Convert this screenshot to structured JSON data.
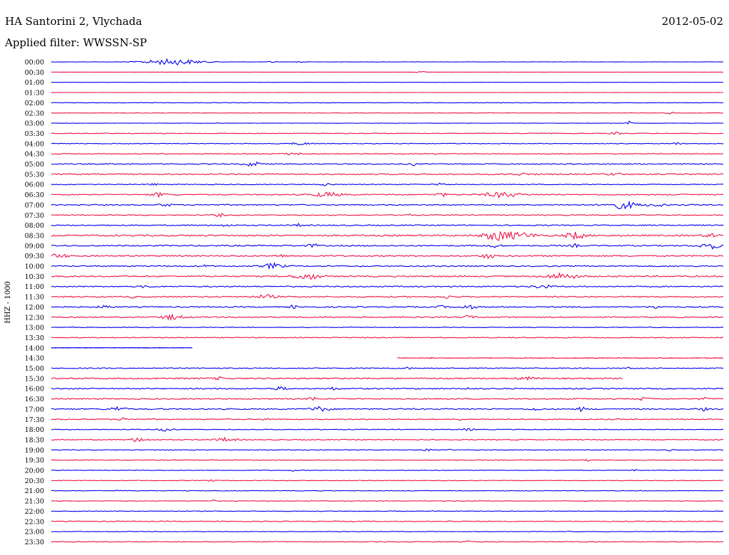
{
  "header": {
    "station": "HA Santorini 2, Vlychada",
    "date": "2012-05-02",
    "filter": "Applied filter: WWSSN-SP"
  },
  "colors": {
    "odd": "#0000ee",
    "even": "#ee1144"
  },
  "chart_data": {
    "type": "line",
    "ylabel": "HHZ - 1000",
    "hours_per_row": 0.5,
    "row_labels": [
      "00:00",
      "00:30",
      "01:00",
      "01:30",
      "02:00",
      "02:30",
      "03:00",
      "03:30",
      "04:00",
      "04:30",
      "05:00",
      "05:30",
      "06:00",
      "06:30",
      "07:00",
      "07:30",
      "08:00",
      "08:30",
      "09:00",
      "09:30",
      "10:00",
      "10:30",
      "11:00",
      "11:30",
      "12:00",
      "12:30",
      "13:00",
      "13:30",
      "14:00",
      "14:30",
      "15:00",
      "15:30",
      "16:00",
      "16:30",
      "17:00",
      "17:30",
      "18:00",
      "18:30",
      "19:00",
      "19:30",
      "20:00",
      "20:30",
      "21:00",
      "21:30",
      "22:00",
      "22:30",
      "23:00",
      "23:30"
    ],
    "rows": [
      {
        "noise": 0.3,
        "events": [
          [
            0.18,
            4,
            0.03
          ],
          [
            0.33,
            1.2,
            0.004
          ],
          [
            0.37,
            1.5,
            0.004
          ]
        ]
      },
      {
        "noise": 0.05,
        "events": [
          [
            0.55,
            1.0,
            0.006
          ]
        ]
      },
      {
        "noise": 0.15,
        "events": []
      },
      {
        "noise": 0.12,
        "events": []
      },
      {
        "noise": 0.4,
        "events": []
      },
      {
        "noise": 0.3,
        "events": [
          [
            0.92,
            1.5,
            0.005
          ]
        ]
      },
      {
        "noise": 0.3,
        "events": [
          [
            0.86,
            2.5,
            0.003
          ]
        ]
      },
      {
        "noise": 0.6,
        "events": [
          [
            0.84,
            1.5,
            0.006
          ]
        ]
      },
      {
        "noise": 0.6,
        "events": [
          [
            0.37,
            1.5,
            0.01
          ],
          [
            0.93,
            1.5,
            0.005
          ]
        ]
      },
      {
        "noise": 0.7,
        "events": [
          [
            0.36,
            1.5,
            0.008
          ]
        ]
      },
      {
        "noise": 0.9,
        "events": [
          [
            0.3,
            3,
            0.008
          ],
          [
            0.54,
            2,
            0.003
          ]
        ]
      },
      {
        "noise": 1.0,
        "events": [
          [
            0.7,
            1.3,
            0.01
          ],
          [
            0.84,
            1.3,
            0.01
          ]
        ]
      },
      {
        "noise": 0.7,
        "events": [
          [
            0.15,
            2,
            0.004
          ],
          [
            0.41,
            2,
            0.005
          ],
          [
            0.58,
            2,
            0.004
          ]
        ]
      },
      {
        "noise": 0.9,
        "events": [
          [
            0.16,
            2.5,
            0.008
          ],
          [
            0.41,
            3,
            0.015
          ],
          [
            0.58,
            2.5,
            0.006
          ],
          [
            0.67,
            3.5,
            0.018
          ],
          [
            0.94,
            2,
            0.005
          ]
        ]
      },
      {
        "noise": 0.9,
        "events": [
          [
            0.17,
            2,
            0.006
          ],
          [
            0.85,
            5,
            0.015
          ],
          [
            0.9,
            2,
            0.01
          ]
        ]
      },
      {
        "noise": 0.8,
        "events": [
          [
            0.25,
            2,
            0.006
          ],
          [
            0.53,
            1.5,
            0.005
          ]
        ]
      },
      {
        "noise": 0.9,
        "events": [
          [
            0.26,
            2,
            0.004
          ],
          [
            0.37,
            2,
            0.005
          ]
        ]
      },
      {
        "noise": 1.3,
        "events": [
          [
            0.66,
            5,
            0.012
          ],
          [
            0.69,
            4,
            0.02
          ],
          [
            0.78,
            4.5,
            0.01
          ],
          [
            0.98,
            2.5,
            0.006
          ]
        ]
      },
      {
        "noise": 1.1,
        "events": [
          [
            0.39,
            2,
            0.006
          ],
          [
            0.66,
            2,
            0.006
          ],
          [
            0.78,
            2,
            0.004
          ],
          [
            0.98,
            4,
            0.01
          ]
        ]
      },
      {
        "noise": 1.1,
        "events": [
          [
            0.01,
            2.5,
            0.01
          ],
          [
            0.34,
            2,
            0.004
          ],
          [
            0.65,
            3.5,
            0.006
          ]
        ]
      },
      {
        "noise": 1.0,
        "events": [
          [
            0.23,
            1.5,
            0.004
          ],
          [
            0.33,
            3.5,
            0.01
          ]
        ]
      },
      {
        "noise": 1.1,
        "events": [
          [
            0.38,
            4,
            0.014
          ],
          [
            0.76,
            4,
            0.016
          ]
        ]
      },
      {
        "noise": 1.0,
        "events": [
          [
            0.14,
            1.5,
            0.005
          ],
          [
            0.73,
            2,
            0.01
          ]
        ]
      },
      {
        "noise": 1.0,
        "events": [
          [
            0.12,
            2.5,
            0.003
          ],
          [
            0.32,
            2.5,
            0.01
          ],
          [
            0.59,
            2,
            0.005
          ]
        ]
      },
      {
        "noise": 1.0,
        "events": [
          [
            0.08,
            2,
            0.006
          ],
          [
            0.36,
            2,
            0.004
          ],
          [
            0.58,
            2.5,
            0.003
          ],
          [
            0.62,
            2.5,
            0.008
          ],
          [
            0.9,
            2,
            0.005
          ]
        ]
      },
      {
        "noise": 1.0,
        "events": [
          [
            0.18,
            3,
            0.012
          ],
          [
            0.62,
            2,
            0.006
          ]
        ]
      },
      {
        "noise": 0.6,
        "events": []
      },
      {
        "noise": 0.7,
        "events": []
      },
      {
        "noise": 0.4,
        "events": [],
        "end": 0.21
      },
      {
        "noise": 0.7,
        "events": [],
        "start": 0.515
      },
      {
        "noise": 0.8,
        "events": [
          [
            0.53,
            1.5,
            0.004
          ],
          [
            0.86,
            1.3,
            0.003
          ]
        ]
      },
      {
        "noise": 1.1,
        "events": [
          [
            0.16,
            1.5,
            0.003
          ],
          [
            0.25,
            1.5,
            0.006
          ],
          [
            0.71,
            1.5,
            0.01
          ]
        ],
        "end": 0.85
      },
      {
        "noise": 1.0,
        "events": [
          [
            0.34,
            2,
            0.008
          ],
          [
            0.42,
            2,
            0.004
          ],
          [
            0.62,
            1.5,
            0.003
          ]
        ]
      },
      {
        "noise": 1.0,
        "events": [
          [
            0.39,
            2.5,
            0.005
          ],
          [
            0.88,
            2,
            0.006
          ],
          [
            0.97,
            1.5,
            0.004
          ]
        ]
      },
      {
        "noise": 1.0,
        "events": [
          [
            0.1,
            3,
            0.008
          ],
          [
            0.4,
            3,
            0.01
          ],
          [
            0.72,
            2,
            0.005
          ],
          [
            0.79,
            3,
            0.004
          ],
          [
            0.97,
            2,
            0.004
          ]
        ]
      },
      {
        "noise": 0.8,
        "events": [
          [
            0.11,
            2,
            0.006
          ],
          [
            0.32,
            1.5,
            0.004
          ],
          [
            0.61,
            1.5,
            0.003
          ]
        ]
      },
      {
        "noise": 0.6,
        "events": [
          [
            0.17,
            2,
            0.008
          ],
          [
            0.62,
            1.5,
            0.006
          ]
        ]
      },
      {
        "noise": 0.7,
        "events": [
          [
            0.13,
            3,
            0.008
          ],
          [
            0.26,
            2.5,
            0.01
          ]
        ]
      },
      {
        "noise": 0.6,
        "events": [
          [
            0.56,
            1.5,
            0.004
          ],
          [
            0.59,
            1.2,
            0.003
          ],
          [
            0.92,
            1.5,
            0.003
          ]
        ]
      },
      {
        "noise": 0.6,
        "events": [
          [
            0.8,
            1.2,
            0.003
          ]
        ]
      },
      {
        "noise": 0.5,
        "events": [
          [
            0.36,
            1.2,
            0.004
          ],
          [
            0.87,
            1.5,
            0.003
          ]
        ]
      },
      {
        "noise": 0.5,
        "events": [
          [
            0.24,
            1.2,
            0.003
          ]
        ]
      },
      {
        "noise": 0.5,
        "events": [
          [
            0.1,
            1.2,
            0.003
          ]
        ]
      },
      {
        "noise": 0.5,
        "events": [
          [
            0.24,
            1.2,
            0.003
          ]
        ]
      },
      {
        "noise": 0.5,
        "events": [
          [
            0.57,
            1.2,
            0.002
          ]
        ]
      },
      {
        "noise": 0.7,
        "events": [
          [
            0.59,
            1.5,
            0.003
          ]
        ]
      },
      {
        "noise": 0.5,
        "events": []
      },
      {
        "noise": 0.6,
        "events": [
          [
            0.62,
            1.5,
            0.003
          ]
        ]
      }
    ]
  }
}
